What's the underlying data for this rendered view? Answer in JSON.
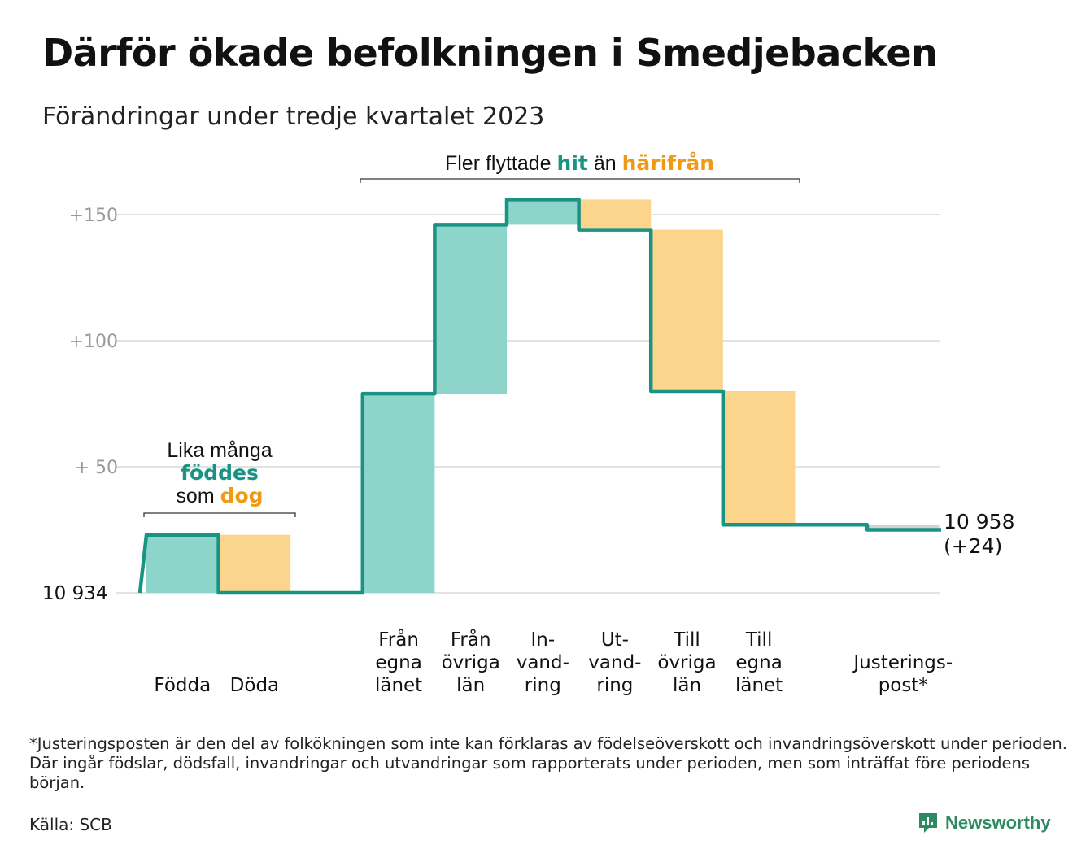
{
  "title": "Därför ökade befolkningen i Smedjebacken",
  "subtitle": "Förändringar under tredje kvartalet 2023",
  "annotations": {
    "births_deaths": {
      "line1": "Lika många",
      "teal_word": "föddes",
      "line3_prefix": "som",
      "orange_word": "dog"
    },
    "migration": {
      "prefix": "Fler flyttade",
      "teal_word": "hit",
      "middle": "än",
      "orange_word": "härifrån"
    }
  },
  "footnote": "*Justeringsposten är den del av folkökningen som inte kan förklaras av födelseöverskott och invandringsöverskott under perioden. Där ingår födslar, dödsfall, invandringar och utvandringar som rapporterats under perioden, men som inträffat före periodens början.",
  "source": "Källa: SCB",
  "brand": "Newsworthy",
  "colors": {
    "increase": "#8dd4cb",
    "decrease": "#fad58b",
    "adjustment": "#d2d2d2",
    "line": "#1a9385",
    "grid": "#e2e2e2",
    "axis_text": "#9a9a9a",
    "teal_text": "#1a9385",
    "orange_text": "#f09a14"
  },
  "chart_data": {
    "type": "waterfall",
    "start_value": 10934,
    "start_label": "10  934",
    "end_label_line1": "10 958",
    "end_label_line2": "(+24)",
    "y_ticks": [
      {
        "value": 50,
        "label": "+  50"
      },
      {
        "value": 100,
        "label": "+100"
      },
      {
        "value": 150,
        "label": "+150"
      }
    ],
    "ylim": [
      0,
      160
    ],
    "steps": [
      {
        "label": [
          "Födda"
        ],
        "change": 23,
        "kind": "increase"
      },
      {
        "label": [
          "Döda"
        ],
        "change": -23,
        "kind": "decrease"
      },
      {
        "label": [],
        "change": 0,
        "kind": "gap"
      },
      {
        "label": [
          "Från",
          "egna",
          "länet"
        ],
        "change": 79,
        "kind": "increase"
      },
      {
        "label": [
          "Från",
          "övriga",
          "län"
        ],
        "change": 67,
        "kind": "increase"
      },
      {
        "label": [
          "In-",
          "vand-",
          "ring"
        ],
        "change": 10,
        "kind": "increase"
      },
      {
        "label": [
          "Ut-",
          "vand-",
          "ring"
        ],
        "change": -12,
        "kind": "decrease"
      },
      {
        "label": [
          "Till",
          "övriga",
          "län"
        ],
        "change": -64,
        "kind": "decrease"
      },
      {
        "label": [
          "Till",
          "egna",
          "länet"
        ],
        "change": -53,
        "kind": "decrease"
      },
      {
        "label": [],
        "change": 0,
        "kind": "gap"
      },
      {
        "label": [
          "Justerings-",
          "post*"
        ],
        "change": -2,
        "kind": "adjustment"
      }
    ]
  }
}
